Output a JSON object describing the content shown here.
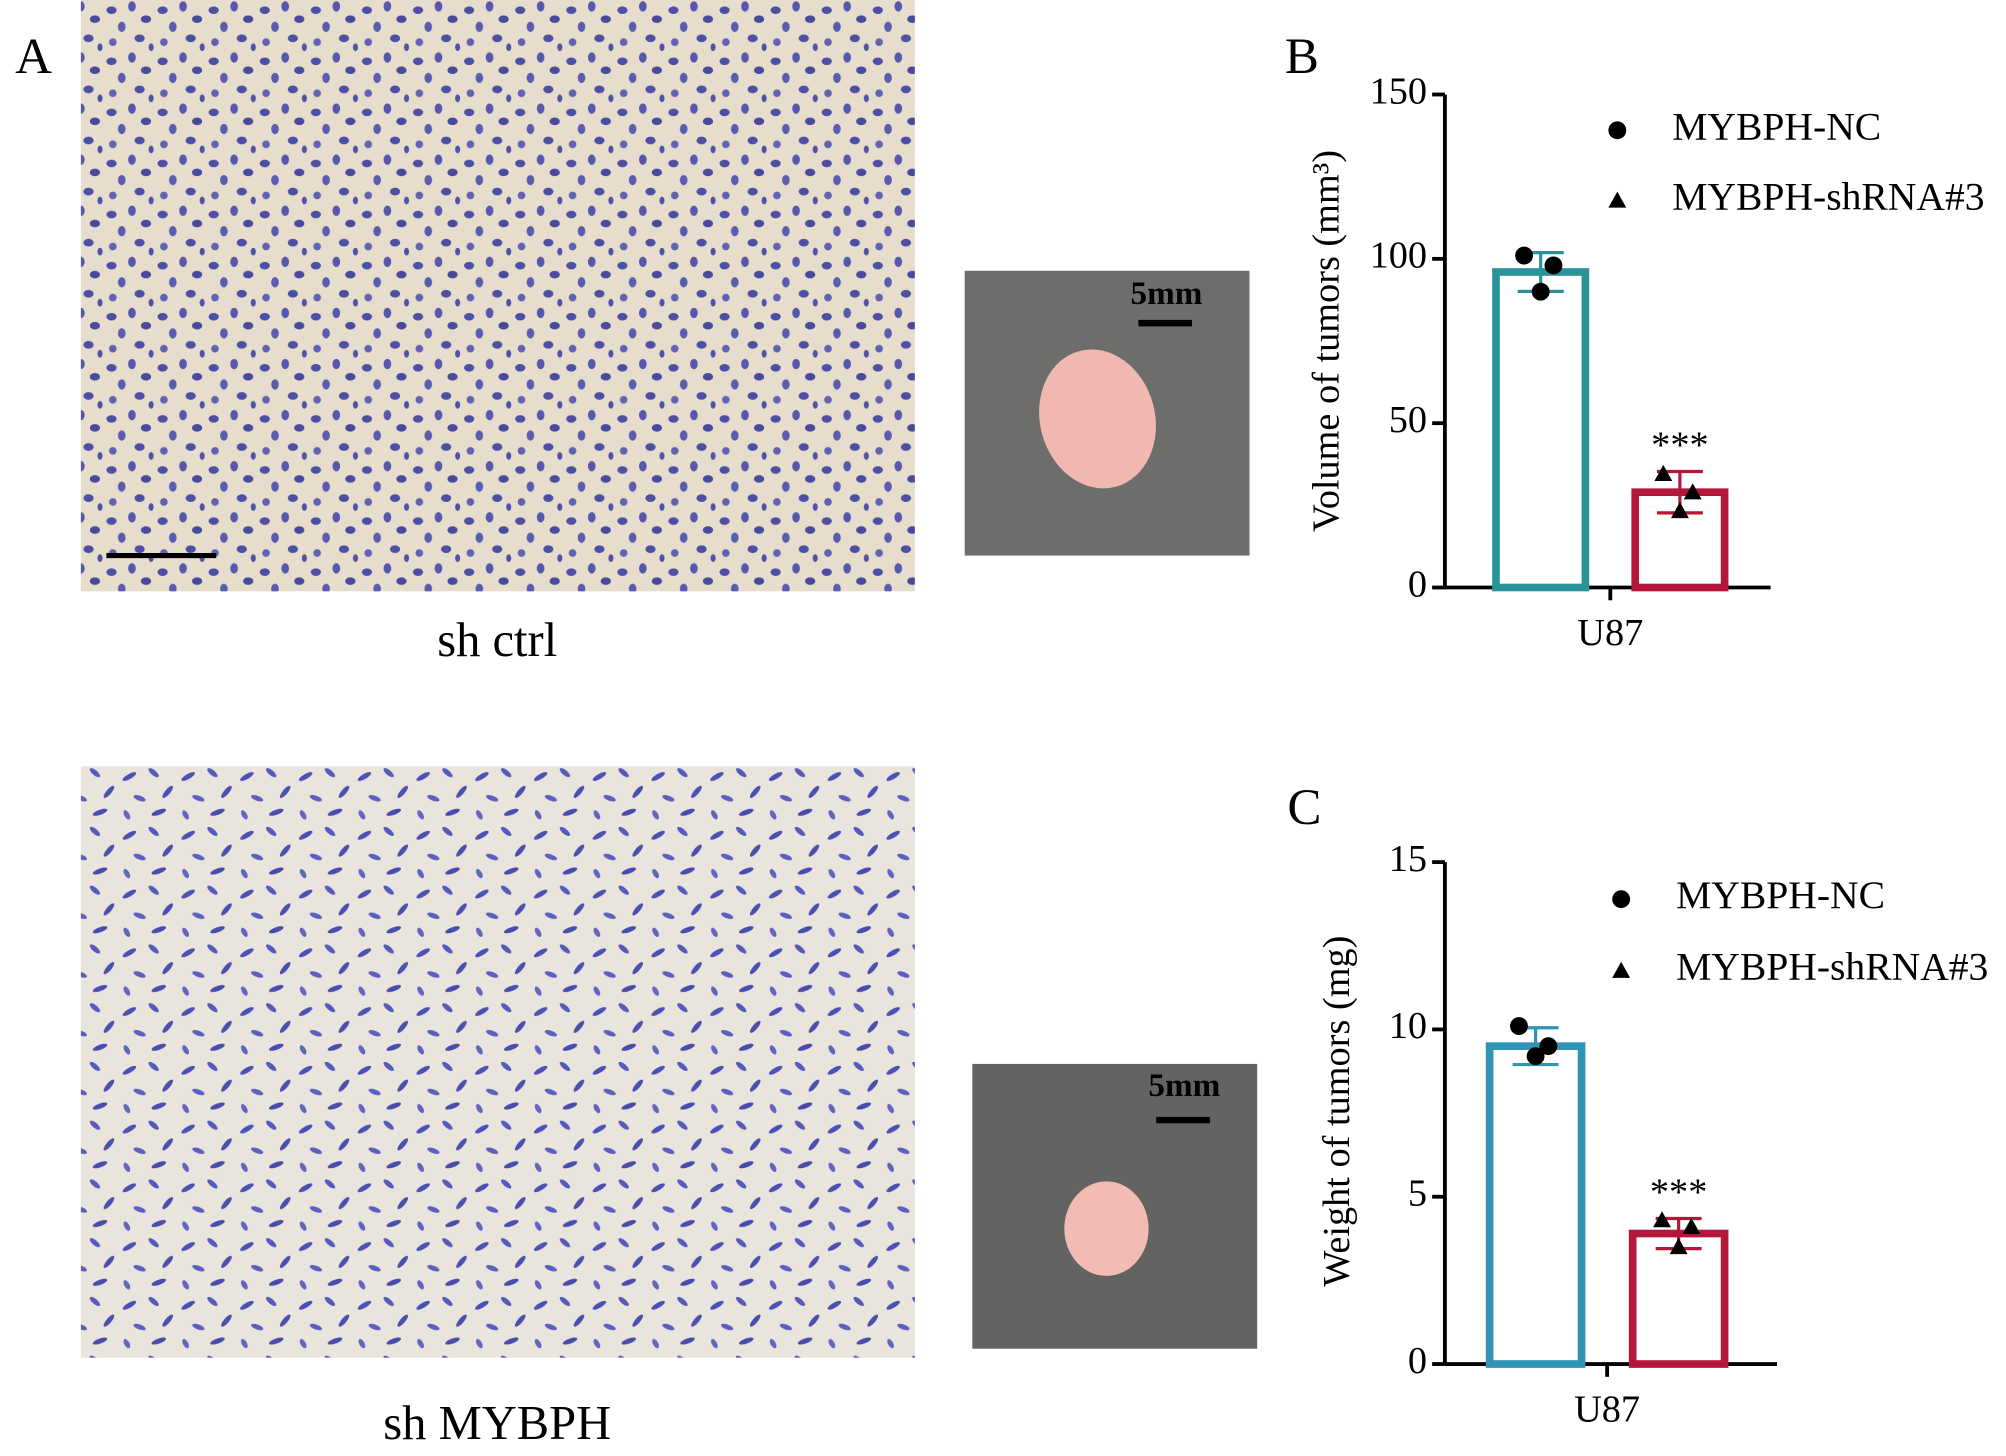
{
  "panel_labels": [
    "A",
    "B",
    "C"
  ],
  "images": {
    "captions": [
      "sh ctrl",
      "sh MYBPH"
    ],
    "scale_labels": [
      "5mm",
      "5mm"
    ]
  },
  "chart_data": [
    {
      "type": "bar",
      "ylabel": "Volume of tumors (mm³)",
      "categories": [
        "U87"
      ],
      "ylim": [
        0,
        150
      ],
      "yticks": [
        0,
        50,
        100,
        150
      ],
      "series": [
        {
          "name": "MYBPH-NC",
          "color": "#2a9398",
          "marker": "circle",
          "values": [
            96
          ],
          "errors": [
            5.9
          ],
          "points": [
            101,
            98,
            90
          ]
        },
        {
          "name": "MYBPH-shRNA#3",
          "color": "#b5173a",
          "marker": "triangle",
          "values": [
            29
          ],
          "errors": [
            6.3
          ],
          "points": [
            34.6,
            29,
            23.3
          ],
          "annotation": "***"
        }
      ]
    },
    {
      "type": "bar",
      "ylabel": "Weight of tumors (mg)",
      "categories": [
        "U87"
      ],
      "ylim": [
        0,
        15
      ],
      "yticks": [
        0,
        5,
        10,
        15
      ],
      "series": [
        {
          "name": "MYBPH-NC",
          "color": "#2f93b5",
          "marker": "circle",
          "values": [
            9.5
          ],
          "errors": [
            0.55
          ],
          "points": [
            10.1,
            9.5,
            9.2
          ]
        },
        {
          "name": "MYBPH-shRNA#3",
          "color": "#b5173a",
          "marker": "triangle",
          "values": [
            3.9
          ],
          "errors": [
            0.45
          ],
          "points": [
            4.3,
            4.1,
            3.5
          ],
          "annotation": "***"
        }
      ]
    }
  ]
}
